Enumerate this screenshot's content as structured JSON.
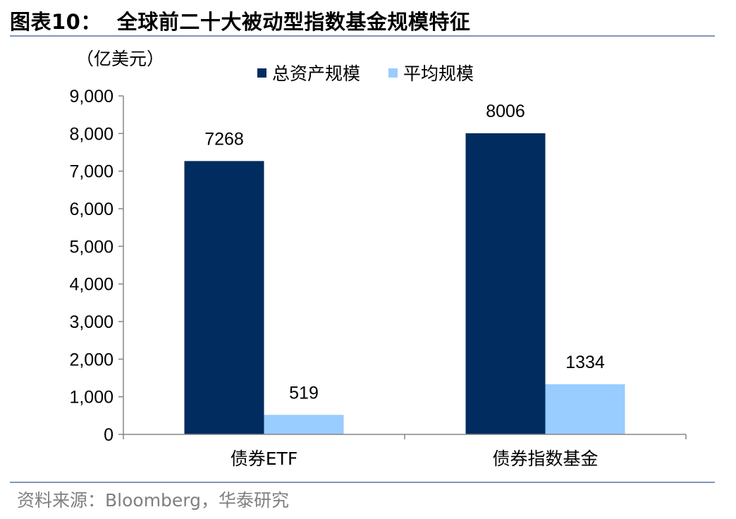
{
  "figure": {
    "title_prefix": "图表10：",
    "title": "全球前二十大被动型指数基金规模特征",
    "source": "资料来源：Bloomberg，华泰研究"
  },
  "chart_data": {
    "type": "bar",
    "unit": "（亿美元）",
    "categories": [
      "债券ETF",
      "债券指数基金"
    ],
    "series": [
      {
        "name": "总资产规模",
        "values": [
          7268,
          8006
        ],
        "color": "#002c5f"
      },
      {
        "name": "平均规模",
        "values": [
          519,
          1334
        ],
        "color": "#99ccff"
      }
    ],
    "data_labels": [
      [
        "7268",
        "8006"
      ],
      [
        "519",
        "1334"
      ]
    ],
    "ylim": [
      0,
      9000
    ],
    "yticks": [
      0,
      1000,
      2000,
      3000,
      4000,
      5000,
      6000,
      7000,
      8000,
      9000
    ],
    "ytick_labels": [
      "0",
      "1,000",
      "2,000",
      "3,000",
      "4,000",
      "5,000",
      "6,000",
      "7,000",
      "8,000",
      "9,000"
    ],
    "grid": false,
    "legend_position": "top-center",
    "colors": {
      "axis": "#868686",
      "rule": "#8096bd",
      "source_text": "#7f7f7f"
    }
  }
}
